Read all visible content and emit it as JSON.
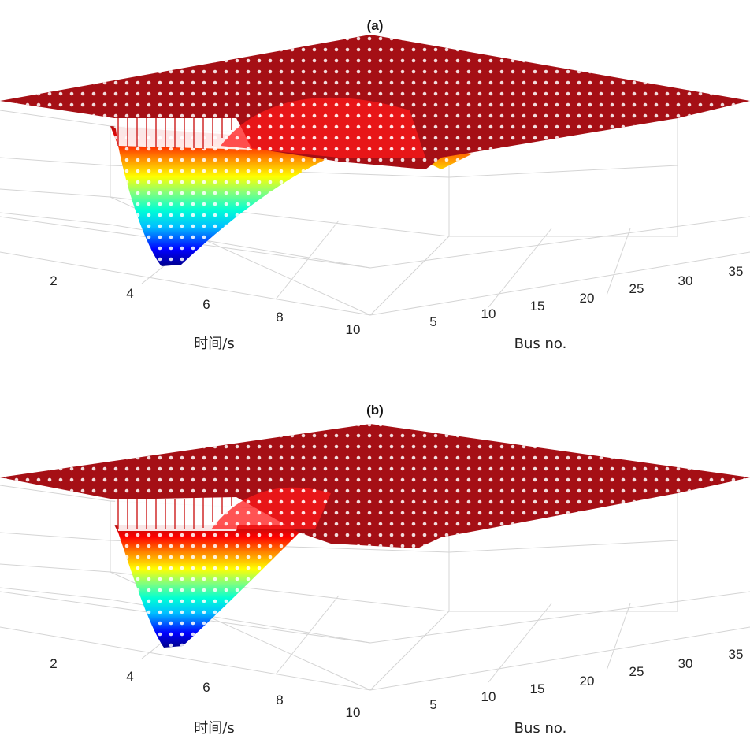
{
  "colors": {
    "plateau": "#a50f15",
    "plateau_edge": "#7f0000",
    "grid": "#cfcfcf",
    "dots": "#ffffff",
    "colormap": [
      "#00008b",
      "#0000ff",
      "#00bfff",
      "#00ffd5",
      "#7fff7f",
      "#ffff00",
      "#ff8000",
      "#ff0000",
      "#a50f15"
    ]
  },
  "chart_data": [
    {
      "type": "surface",
      "title": "(a)",
      "xlabel": "Bus no.",
      "ylabel": "时间/s",
      "x_ticks": [
        "5",
        "10",
        "15",
        "20",
        "25",
        "30",
        "35"
      ],
      "y_ticks": [
        "2",
        "4",
        "6",
        "8",
        "10"
      ],
      "xlim": [
        1,
        39
      ],
      "ylim": [
        0,
        10
      ],
      "description_values": {
        "plateau_level": 1.0,
        "dip_region_bus": [
          1,
          12
        ],
        "dip_region_time_s": [
          1,
          4
        ],
        "dip_min_relative": 0.0
      }
    },
    {
      "type": "surface",
      "title": "(b)",
      "xlabel": "Bus no.",
      "ylabel": "时间/s",
      "x_ticks": [
        "5",
        "10",
        "15",
        "20",
        "25",
        "30",
        "35"
      ],
      "y_ticks": [
        "2",
        "4",
        "6",
        "8",
        "10"
      ],
      "xlim": [
        1,
        39
      ],
      "ylim": [
        0,
        10
      ],
      "description_values": {
        "plateau_level": 1.0,
        "dip_region_bus": [
          1,
          10
        ],
        "dip_region_time_s": [
          1,
          3.5
        ],
        "dip_min_relative": 0.0
      }
    }
  ]
}
